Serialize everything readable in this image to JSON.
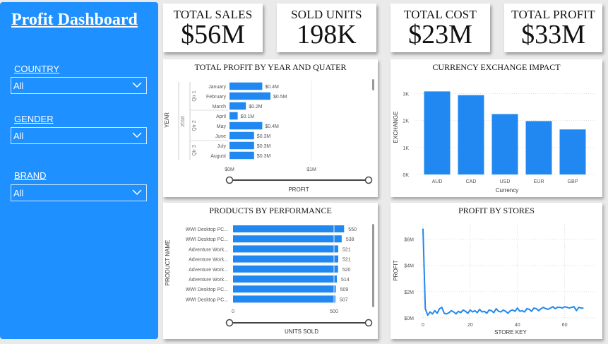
{
  "sidebar": {
    "title": "Profit Dashboard",
    "filters": [
      {
        "label": "COUNTRY",
        "value": "All"
      },
      {
        "label": "GENDER",
        "value": "All"
      },
      {
        "label": "BRAND",
        "value": "All"
      }
    ]
  },
  "kpis": [
    {
      "label": "TOTAL SALES",
      "value": "$56M"
    },
    {
      "label": "SOLD UNITS",
      "value": "198K"
    },
    {
      "label": "TOTAL COST",
      "value": "$23M"
    },
    {
      "label": "TOTAL PROFIT",
      "value": "$33M"
    }
  ],
  "colors": {
    "accent": "#1e90ff",
    "bar": "#2088f0"
  },
  "chart_data": [
    {
      "type": "bar",
      "orientation": "horizontal",
      "title": "TOTAL PROFIT BY YEAR AND QUATER",
      "xlabel": "PROFIT",
      "ylabel": "YEAR",
      "year": "2016",
      "quarters": [
        {
          "label": "Qtr 1",
          "months": 3
        },
        {
          "label": "Qtr 2",
          "months": 3
        },
        {
          "label": "Qtr 3",
          "months": 2
        }
      ],
      "categories": [
        "January",
        "February",
        "March",
        "April",
        "May",
        "June",
        "July",
        "August"
      ],
      "values": [
        0.4,
        0.5,
        0.2,
        0.1,
        0.4,
        0.3,
        0.3,
        0.3
      ],
      "data_labels": [
        "$0.4M",
        "$0.5M",
        "$0.2M",
        "$0.1M",
        "$0.4M",
        "$0.3M",
        "$0.3M",
        "$0.3M"
      ],
      "xticks": [
        "$0M",
        "$1M"
      ],
      "xlim": [
        0,
        1
      ]
    },
    {
      "type": "bar",
      "title": "CURRENCY EXCHANGE IMPACT",
      "xlabel": "Currency",
      "ylabel": "EXCHANGE",
      "categories": [
        "AUD",
        "CAD",
        "USD",
        "EUR",
        "GBP"
      ],
      "values": [
        3080,
        2940,
        2240,
        1980,
        1670
      ],
      "yticks": [
        "0K",
        "1K",
        "2K",
        "3K"
      ],
      "ylim": [
        0,
        3300
      ]
    },
    {
      "type": "bar",
      "orientation": "horizontal",
      "title": "PRODUCTS BY PERFORMANCE",
      "xlabel": "UNITS SOLD",
      "ylabel": "PRODUCT NAME",
      "categories": [
        "WWI Desktop PC...",
        "WWI Desktop PC...",
        "Adventure Work...",
        "Adventure Work...",
        "Adventure Work...",
        "Adventure Work...",
        "WWI Desktop PC...",
        "WWI Desktop PC..."
      ],
      "values": [
        550,
        538,
        521,
        521,
        520,
        514,
        509,
        507
      ],
      "xticks": [
        "0",
        "500"
      ],
      "xlim": [
        0,
        620
      ]
    },
    {
      "type": "line",
      "title": "PROFIT BY STORES",
      "xlabel": "STORE KEY",
      "ylabel": "PROFIT",
      "x": [
        0,
        1,
        2,
        3,
        4,
        5,
        6,
        7,
        8,
        9,
        10,
        11,
        12,
        13,
        14,
        15,
        16,
        17,
        18,
        19,
        20,
        21,
        22,
        23,
        24,
        25,
        26,
        27,
        28,
        29,
        30,
        31,
        32,
        33,
        34,
        35,
        36,
        37,
        38,
        39,
        40,
        41,
        42,
        43,
        44,
        45,
        46,
        47,
        48,
        49,
        50,
        51,
        52,
        53,
        54,
        55,
        56,
        57,
        58,
        59,
        60,
        61,
        62,
        63,
        64,
        65,
        66,
        67,
        68
      ],
      "values": [
        6.8,
        0.7,
        0.2,
        0.45,
        0.3,
        0.55,
        0.35,
        0.7,
        0.8,
        0.35,
        0.3,
        0.4,
        0.55,
        0.45,
        0.3,
        0.5,
        0.4,
        0.6,
        0.5,
        0.35,
        0.6,
        0.45,
        0.55,
        0.4,
        0.65,
        0.45,
        0.5,
        0.35,
        0.6,
        0.55,
        0.4,
        0.7,
        0.5,
        0.45,
        0.6,
        0.5,
        0.35,
        0.55,
        0.6,
        0.5,
        0.75,
        0.5,
        0.55,
        0.45,
        0.7,
        0.65,
        0.5,
        0.75,
        0.7,
        0.55,
        0.7,
        0.8,
        0.7,
        0.65,
        0.75,
        0.85,
        0.7,
        0.8,
        0.8,
        0.75,
        0.85,
        0.8,
        0.75,
        0.8,
        0.85,
        0.55,
        0.8,
        0.75,
        0.75
      ],
      "yticks": [
        "$0M",
        "$2M",
        "$4M",
        "$6M"
      ],
      "xticks": [
        "0",
        "20",
        "40",
        "60"
      ],
      "ylim": [
        0,
        7
      ],
      "xlim": [
        0,
        70
      ]
    }
  ]
}
